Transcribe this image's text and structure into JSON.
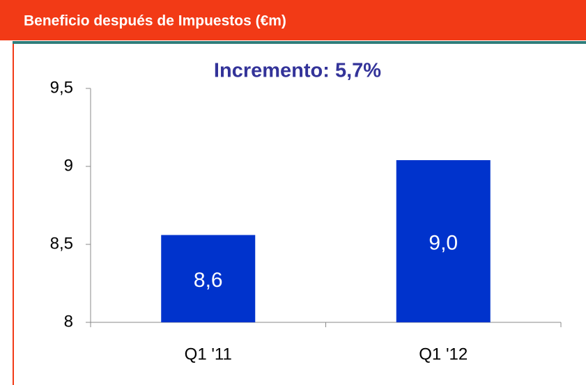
{
  "chart_data": {
    "type": "bar",
    "title": "Beneficio después de Impuestos  (€m)",
    "subtitle": "Incremento: 5,7%",
    "categories": [
      "Q1 '11",
      "Q1 '12"
    ],
    "values": [
      8.56,
      9.04
    ],
    "value_labels": [
      "8,6",
      "9,0"
    ],
    "color": "#0033cc",
    "ylim": [
      8,
      9.5
    ],
    "yticks": [
      8,
      {
        "value": 8.5,
        "label": "8,5"
      },
      9,
      {
        "value": 9.5,
        "label": "9,5"
      }
    ],
    "grid": false
  }
}
